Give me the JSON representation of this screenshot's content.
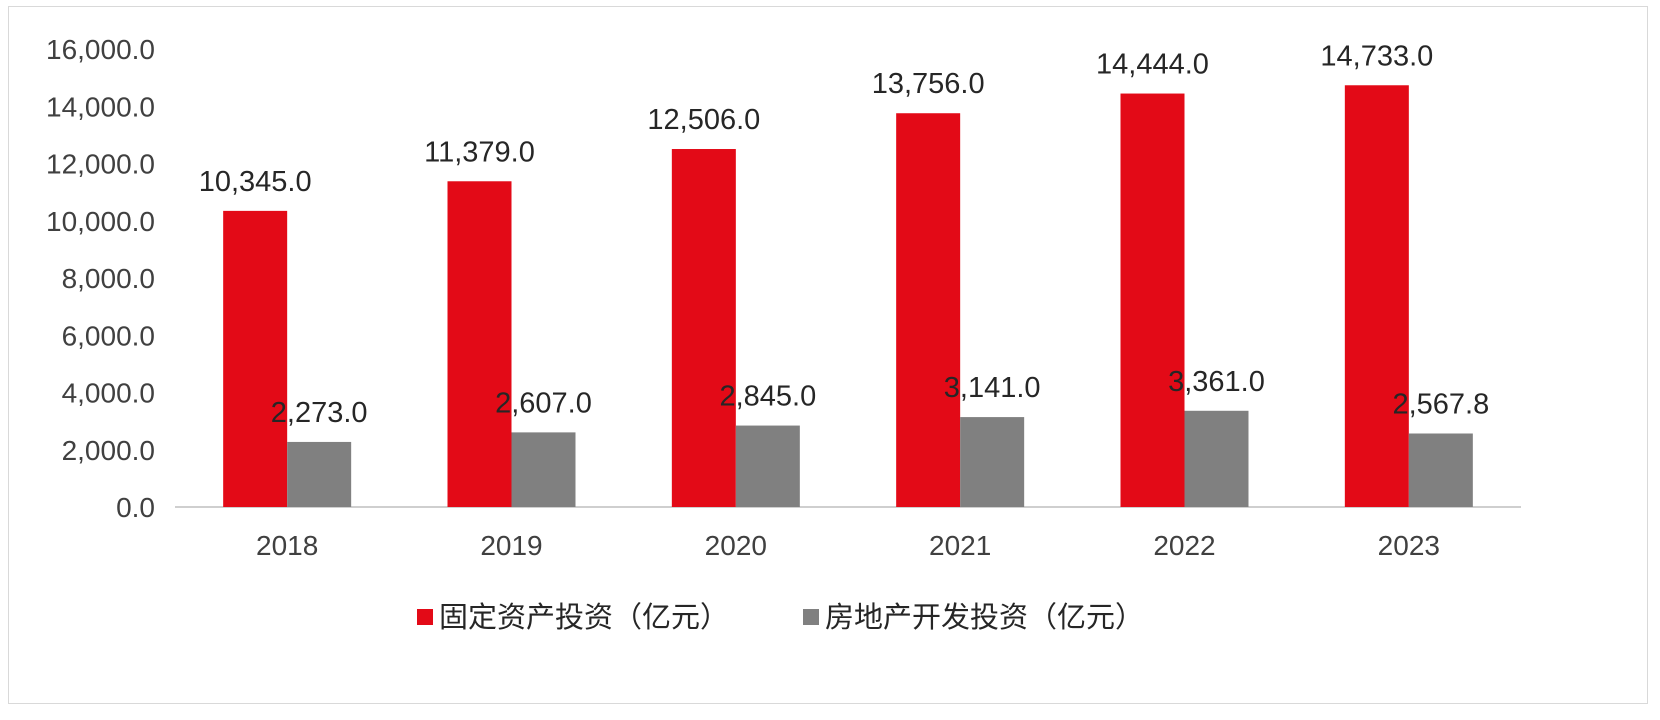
{
  "chart_data": {
    "type": "bar",
    "title": "",
    "xlabel": "",
    "ylabel": "",
    "categories": [
      "2018",
      "2019",
      "2020",
      "2021",
      "2022",
      "2023"
    ],
    "series": [
      {
        "name": "固定资产投资（亿元）",
        "color": "#e30a17",
        "values": [
          10345.0,
          11379.0,
          12506.0,
          13756.0,
          14444.0,
          14733.0
        ],
        "labels": [
          "10,345.0",
          "11,379.0",
          "12,506.0",
          "13,756.0",
          "14,444.0",
          "14,733.0"
        ]
      },
      {
        "name": "房地产开发投资（亿元）",
        "color": "#808080",
        "values": [
          2273.0,
          2607.0,
          2845.0,
          3141.0,
          3361.0,
          2567.8
        ],
        "labels": [
          "2,273.0",
          "2,607.0",
          "2,845.0",
          "3,141.0",
          "3,361.0",
          "2,567.8"
        ]
      }
    ],
    "ylim": [
      0,
      16000
    ],
    "yticks": [
      0,
      2000,
      4000,
      6000,
      8000,
      10000,
      12000,
      14000,
      16000
    ],
    "ytick_labels": [
      "0.0",
      "2,000.0",
      "4,000.0",
      "6,000.0",
      "8,000.0",
      "10,000.0",
      "12,000.0",
      "14,000.0",
      "16,000.0"
    ],
    "grid": false,
    "legend_position": "bottom"
  }
}
